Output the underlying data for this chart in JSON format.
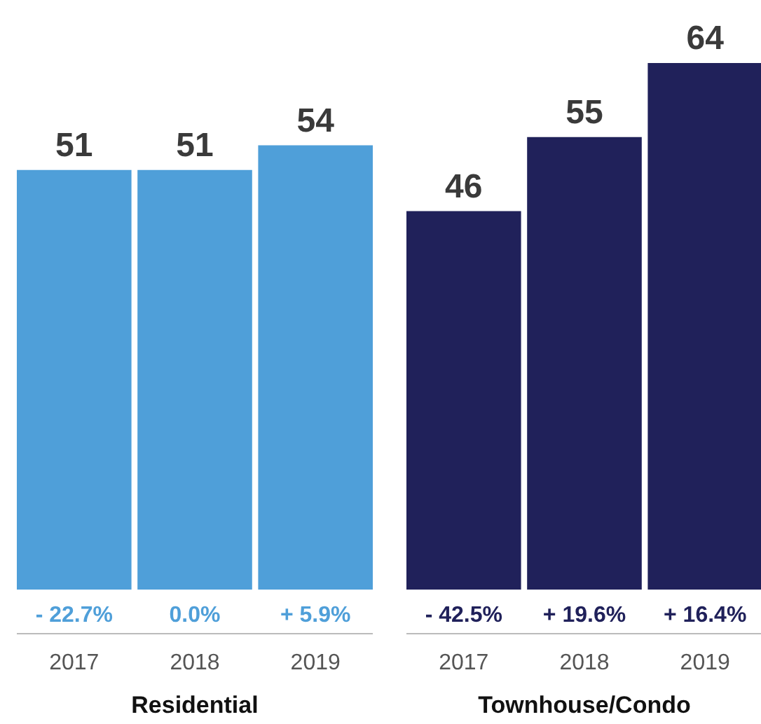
{
  "chart_data": [
    {
      "type": "bar",
      "xlabel": "Residential",
      "categories": [
        "2017",
        "2018",
        "2019"
      ],
      "values": [
        51,
        51,
        54
      ],
      "color": "#4f9fd9",
      "data_labels": true,
      "annotations": [
        "- 22.7%",
        "0.0%",
        "+ 5.9%"
      ]
    },
    {
      "type": "bar",
      "xlabel": "Townhouse/Condo",
      "categories": [
        "2017",
        "2018",
        "2019"
      ],
      "values": [
        46,
        55,
        64
      ],
      "color": "#20215a",
      "data_labels": true,
      "annotations": [
        "- 42.5%",
        "+ 19.6%",
        "+ 16.4%"
      ]
    }
  ]
}
